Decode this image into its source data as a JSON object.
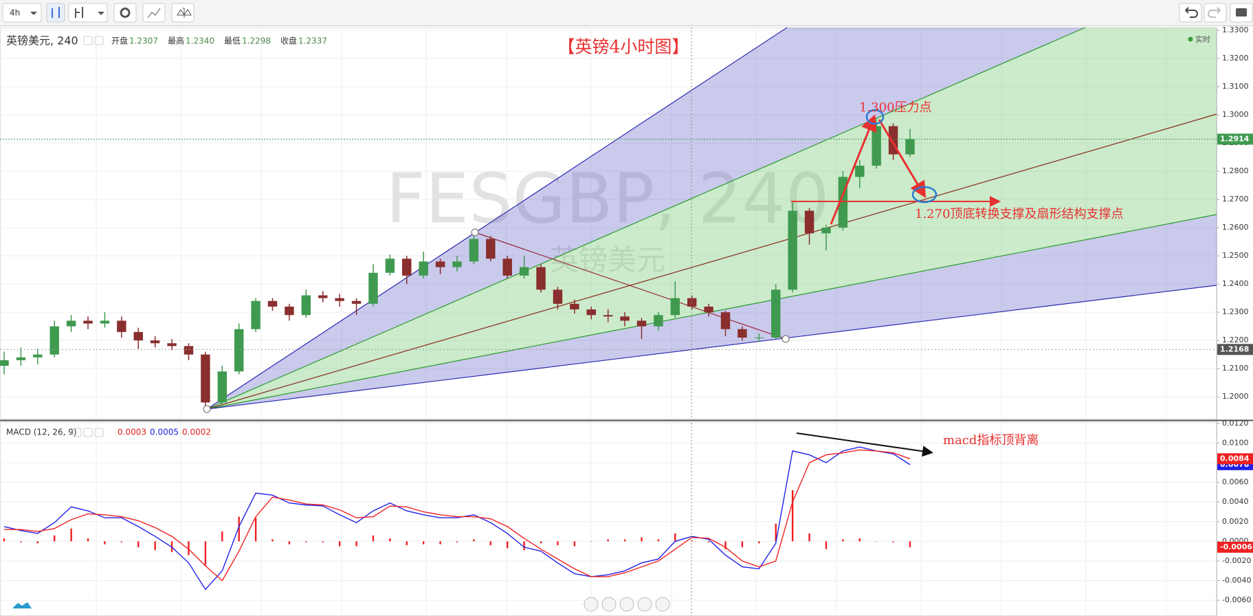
{
  "toolbar": {
    "interval": "4h"
  },
  "chart_data": [
    {
      "type": "candlestick",
      "title": "英镑美元, 240",
      "ohlc_legend": [
        {
          "label": "开盘",
          "value": "1.2307"
        },
        {
          "label": "最高",
          "value": "1.2340"
        },
        {
          "label": "最低",
          "value": "1.2298"
        },
        {
          "label": "收盘",
          "value": "1.2337"
        }
      ],
      "realtime": "实时",
      "watermark": {
        "symbol": "FESGBP, 240",
        "name": "英镑美元"
      },
      "annotations": {
        "heading": "【英镑4小时图】",
        "resistance": "1.300压力点",
        "support": "1.270顶底转换支撑及扇形结构支撑点"
      },
      "up_color": "#3f9a4f",
      "down_color": "#8a2e2e",
      "open": [
        1.211,
        1.213,
        1.214,
        1.215,
        1.225,
        1.227,
        1.226,
        1.227,
        1.223,
        1.22,
        1.219,
        1.218,
        1.215,
        1.198,
        1.209,
        1.224,
        1.234,
        1.232,
        1.229,
        1.236,
        1.235,
        1.234,
        1.233,
        1.244,
        1.249,
        1.243,
        1.248,
        1.246,
        1.248,
        1.256,
        1.249,
        1.243,
        1.246,
        1.238,
        1.233,
        1.231,
        1.229,
        1.2285,
        1.227,
        1.225,
        1.229,
        1.235,
        1.232,
        1.23,
        1.224,
        1.221,
        1.221,
        1.238,
        1.266,
        1.258,
        1.26,
        1.278,
        1.282,
        1.296,
        1.286
      ],
      "high": [
        1.216,
        1.2175,
        1.217,
        1.227,
        1.229,
        1.2285,
        1.23,
        1.2285,
        1.2245,
        1.2215,
        1.2205,
        1.219,
        1.216,
        1.211,
        1.226,
        1.235,
        1.235,
        1.233,
        1.238,
        1.2375,
        1.2365,
        1.235,
        1.247,
        1.2505,
        1.25,
        1.2515,
        1.249,
        1.25,
        1.258,
        1.257,
        1.25,
        1.25,
        1.247,
        1.239,
        1.2345,
        1.232,
        1.231,
        1.23,
        1.228,
        1.23,
        1.241,
        1.236,
        1.233,
        1.2305,
        1.225,
        1.2225,
        1.24,
        1.269,
        1.267,
        1.261,
        1.28,
        1.284,
        1.299,
        1.297,
        1.295
      ],
      "low": [
        1.208,
        1.211,
        1.2115,
        1.214,
        1.223,
        1.224,
        1.2245,
        1.221,
        1.217,
        1.2175,
        1.2165,
        1.213,
        1.196,
        1.197,
        1.208,
        1.223,
        1.2305,
        1.227,
        1.228,
        1.2335,
        1.232,
        1.229,
        1.232,
        1.243,
        1.24,
        1.242,
        1.2435,
        1.2445,
        1.247,
        1.248,
        1.242,
        1.242,
        1.237,
        1.231,
        1.2295,
        1.2275,
        1.2265,
        1.225,
        1.2205,
        1.2235,
        1.228,
        1.231,
        1.2285,
        1.2215,
        1.22,
        1.2195,
        1.2205,
        1.237,
        1.254,
        1.252,
        1.259,
        1.274,
        1.281,
        1.284,
        1.285
      ],
      "close": [
        1.213,
        1.214,
        1.215,
        1.225,
        1.227,
        1.226,
        1.227,
        1.223,
        1.22,
        1.219,
        1.218,
        1.215,
        1.198,
        1.209,
        1.224,
        1.234,
        1.232,
        1.229,
        1.236,
        1.235,
        1.234,
        1.233,
        1.244,
        1.249,
        1.243,
        1.248,
        1.246,
        1.248,
        1.256,
        1.249,
        1.243,
        1.246,
        1.238,
        1.233,
        1.231,
        1.229,
        1.2285,
        1.227,
        1.225,
        1.229,
        1.235,
        1.232,
        1.23,
        1.224,
        1.221,
        1.221,
        1.238,
        1.266,
        1.258,
        1.26,
        1.278,
        1.282,
        1.296,
        1.286,
        1.2914
      ],
      "crosshair_price": 1.2168,
      "ylim": [
        1.192,
        1.331
      ],
      "yticks": [
        {
          "value": 1.2,
          "label": "1.2000"
        },
        {
          "value": 1.21,
          "label": "1.2100"
        },
        {
          "value": 1.22,
          "label": "1.2200"
        },
        {
          "value": 1.23,
          "label": "1.2300"
        },
        {
          "value": 1.24,
          "label": "1.2400"
        },
        {
          "value": 1.25,
          "label": "1.2500"
        },
        {
          "value": 1.26,
          "label": "1.2600"
        },
        {
          "value": 1.27,
          "label": "1.2700"
        },
        {
          "value": 1.28,
          "label": "1.2800"
        },
        {
          "value": 1.29,
          "label": "1.2900"
        },
        {
          "value": 1.3,
          "label": "1.3000"
        },
        {
          "value": 1.31,
          "label": "1.3100"
        },
        {
          "value": 1.32,
          "label": "1.3200"
        },
        {
          "value": 1.33,
          "label": "1.3300"
        }
      ],
      "grid": true
    },
    {
      "type": "macd",
      "title": "MACD (12, 26, 9)",
      "readout": [
        0.0003,
        0.0005,
        0.0002
      ],
      "annotation": "macd指标顶背离",
      "series": [
        {
          "color": "#2020e8",
          "values": [
            0.0015,
            0.0011,
            0.0008,
            0.0019,
            0.0035,
            0.0031,
            0.0024,
            0.0024,
            0.0015,
            0.0005,
            -0.0006,
            -0.0022,
            -0.0049,
            -0.003,
            0.0015,
            0.0049,
            0.0047,
            0.0039,
            0.0037,
            0.0036,
            0.0027,
            0.0019,
            0.0031,
            0.0039,
            0.0031,
            0.0027,
            0.0024,
            0.0024,
            0.0027,
            0.0019,
            0.0008,
            -0.0006,
            -0.001,
            -0.0022,
            -0.0033,
            -0.0036,
            -0.0034,
            -0.003,
            -0.0022,
            -0.0018,
            0.0,
            0.0005,
            0.0002,
            -0.0014,
            -0.0026,
            -0.0028,
            -0.0002,
            0.0092,
            0.0088,
            0.008,
            0.0092,
            0.0096,
            0.0092,
            0.0089,
            0.0078
          ]
        },
        {
          "color": "#f02020",
          "values": [
            0.0012,
            0.0012,
            0.001,
            0.0013,
            0.0022,
            0.0028,
            0.0027,
            0.0025,
            0.0021,
            0.0014,
            0.0005,
            -0.0008,
            -0.0025,
            -0.004,
            -0.001,
            0.0025,
            0.0045,
            0.0042,
            0.0038,
            0.0037,
            0.0032,
            0.0024,
            0.0025,
            0.0036,
            0.0035,
            0.003,
            0.0027,
            0.0025,
            0.0025,
            0.0023,
            0.0015,
            0.0003,
            -0.0008,
            -0.0018,
            -0.0028,
            -0.0036,
            -0.0036,
            -0.0032,
            -0.0026,
            -0.002,
            -0.0008,
            0.0004,
            0.0003,
            -0.0006,
            -0.002,
            -0.0026,
            -0.002,
            0.004,
            0.008,
            0.0088,
            0.009,
            0.0093,
            0.0092,
            0.009,
            0.0084
          ]
        }
      ],
      "histogram": {
        "color": "#f02020",
        "values": [
          0.0003,
          -0.0001,
          -0.0002,
          0.0006,
          0.0013,
          0.0003,
          -0.0003,
          -0.0001,
          -0.0006,
          -0.0009,
          -0.0011,
          -0.0014,
          -0.0024,
          0.001,
          0.0025,
          0.0024,
          0.0002,
          -0.0003,
          -0.0001,
          -0.0001,
          -0.0005,
          -0.0005,
          0.0006,
          0.0003,
          -0.0004,
          -0.0003,
          -0.0003,
          -0.0001,
          0.0002,
          -0.0004,
          -0.0007,
          -0.0009,
          -0.0002,
          -0.0004,
          -0.0005,
          0.0,
          0.0002,
          0.0002,
          0.0004,
          0.0002,
          0.0008,
          0.0001,
          -0.0001,
          -0.0008,
          -0.0006,
          -0.0002,
          0.0018,
          0.0052,
          0.0008,
          -0.0008,
          0.0002,
          0.0003,
          0.0,
          -0.0001,
          -0.0006
        ]
      },
      "ylim": [
        -0.0076,
        0.0122
      ],
      "yticks": [
        {
          "value": 0.012,
          "label": "0.0120"
        },
        {
          "value": 0.01,
          "label": "0.0100"
        },
        {
          "value": 0.008,
          "label": "0.0080"
        },
        {
          "value": 0.006,
          "label": "0.0060"
        },
        {
          "value": 0.004,
          "label": "0.0040"
        },
        {
          "value": 0.002,
          "label": "0.0020"
        },
        {
          "value": 0,
          "label": "0.0000"
        },
        {
          "value": -0.002,
          "label": "-0.0020"
        },
        {
          "value": -0.004,
          "label": "-0.0040"
        },
        {
          "value": -0.006,
          "label": "-0.0060"
        }
      ],
      "grid": true
    }
  ]
}
